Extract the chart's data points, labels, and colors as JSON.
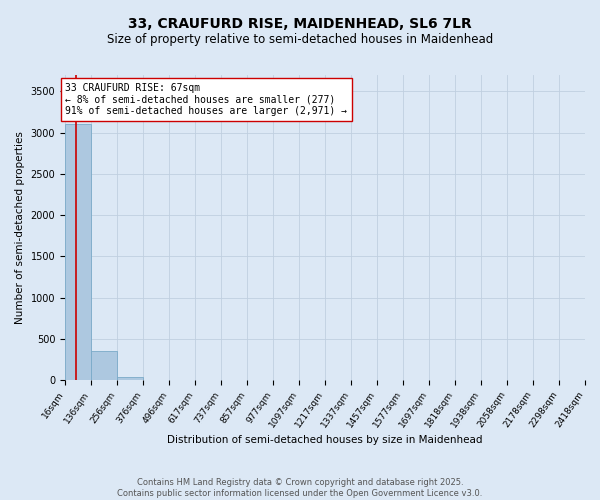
{
  "title": "33, CRAUFURD RISE, MAIDENHEAD, SL6 7LR",
  "subtitle": "Size of property relative to semi-detached houses in Maidenhead",
  "xlabel": "Distribution of semi-detached houses by size in Maidenhead",
  "ylabel": "Number of semi-detached properties",
  "footer_line1": "Contains HM Land Registry data © Crown copyright and database right 2025.",
  "footer_line2": "Contains public sector information licensed under the Open Government Licence v3.0.",
  "bar_edges": [
    16,
    136,
    256,
    376,
    496,
    617,
    737,
    857,
    977,
    1097,
    1217,
    1337,
    1457,
    1577,
    1697,
    1818,
    1938,
    2058,
    2178,
    2298,
    2418
  ],
  "bar_heights": [
    3100,
    350,
    40,
    0,
    0,
    0,
    0,
    0,
    0,
    0,
    0,
    0,
    0,
    0,
    0,
    0,
    0,
    0,
    0,
    0
  ],
  "bar_color": "#adc8e0",
  "bar_edgecolor": "#7aaac8",
  "property_size": 67,
  "red_line_color": "#cc0000",
  "annotation_text": "33 CRAUFURD RISE: 67sqm\n← 8% of semi-detached houses are smaller (277)\n91% of semi-detached houses are larger (2,971) →",
  "annotation_box_color": "white",
  "annotation_box_edgecolor": "#cc0000",
  "ylim": [
    0,
    3700
  ],
  "yticks": [
    0,
    500,
    1000,
    1500,
    2000,
    2500,
    3000,
    3500
  ],
  "background_color": "#dce8f5",
  "grid_color": "#c0cfe0",
  "title_fontsize": 10,
  "subtitle_fontsize": 8.5,
  "annotation_fontsize": 7,
  "footer_fontsize": 6,
  "tick_label_fontsize": 6.5,
  "ylabel_fontsize": 7.5,
  "xlabel_fontsize": 7.5
}
